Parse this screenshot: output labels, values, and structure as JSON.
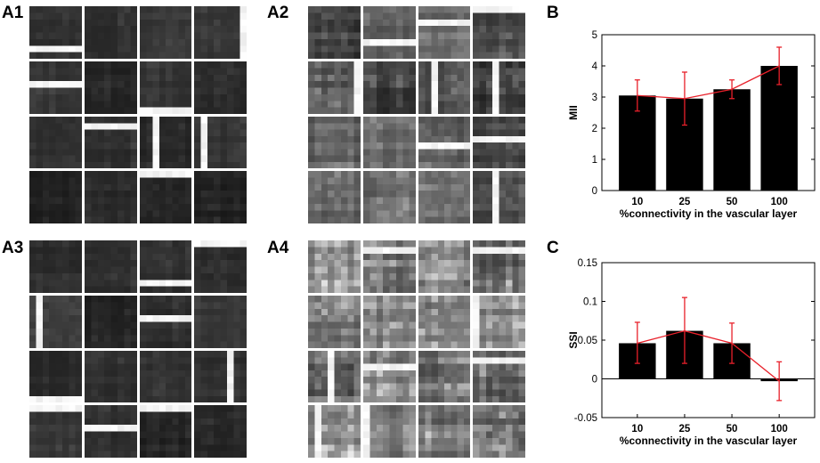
{
  "panel_labels": {
    "a1": "A1",
    "a2": "A2",
    "a3": "A3",
    "a4": "A4",
    "b": "B",
    "c": "C"
  },
  "colors": {
    "bar": "#000000",
    "error": "#e8202a",
    "line": "#e8202a"
  },
  "mosaics": [
    {
      "name": "A1",
      "tone": "dark"
    },
    {
      "name": "A2",
      "tone": "mixed"
    },
    {
      "name": "A3",
      "tone": "dark"
    },
    {
      "name": "A4",
      "tone": "light"
    }
  ],
  "chart_data": [
    {
      "type": "bar",
      "panel": "B",
      "categories": [
        "10",
        "25",
        "50",
        "100"
      ],
      "values": [
        3.05,
        2.95,
        3.25,
        4.0
      ],
      "error_low": [
        2.55,
        2.1,
        2.95,
        3.4
      ],
      "error_high": [
        3.55,
        3.8,
        3.55,
        4.6
      ],
      "xlabel": "%connectivity in the vascular layer",
      "ylabel": "MII",
      "ylim": [
        0,
        5
      ],
      "yticks": [
        "0",
        "1",
        "2",
        "3",
        "4",
        "5"
      ],
      "ytick_values": [
        0,
        1,
        2,
        3,
        4,
        5
      ],
      "grid": false
    },
    {
      "type": "bar",
      "panel": "C",
      "categories": [
        "10",
        "25",
        "50",
        "100"
      ],
      "values": [
        0.046,
        0.062,
        0.046,
        -0.003
      ],
      "error_low": [
        0.02,
        0.02,
        0.02,
        -0.028
      ],
      "error_high": [
        0.073,
        0.105,
        0.072,
        0.022
      ],
      "xlabel": "%connectivity in the vascular layer",
      "ylabel": "SSI",
      "ylim": [
        -0.05,
        0.15
      ],
      "yticks": [
        "-0.05",
        "0",
        "0.05",
        "0.1",
        "0.15"
      ],
      "ytick_values": [
        -0.05,
        0,
        0.05,
        0.1,
        0.15
      ],
      "grid": false
    }
  ]
}
